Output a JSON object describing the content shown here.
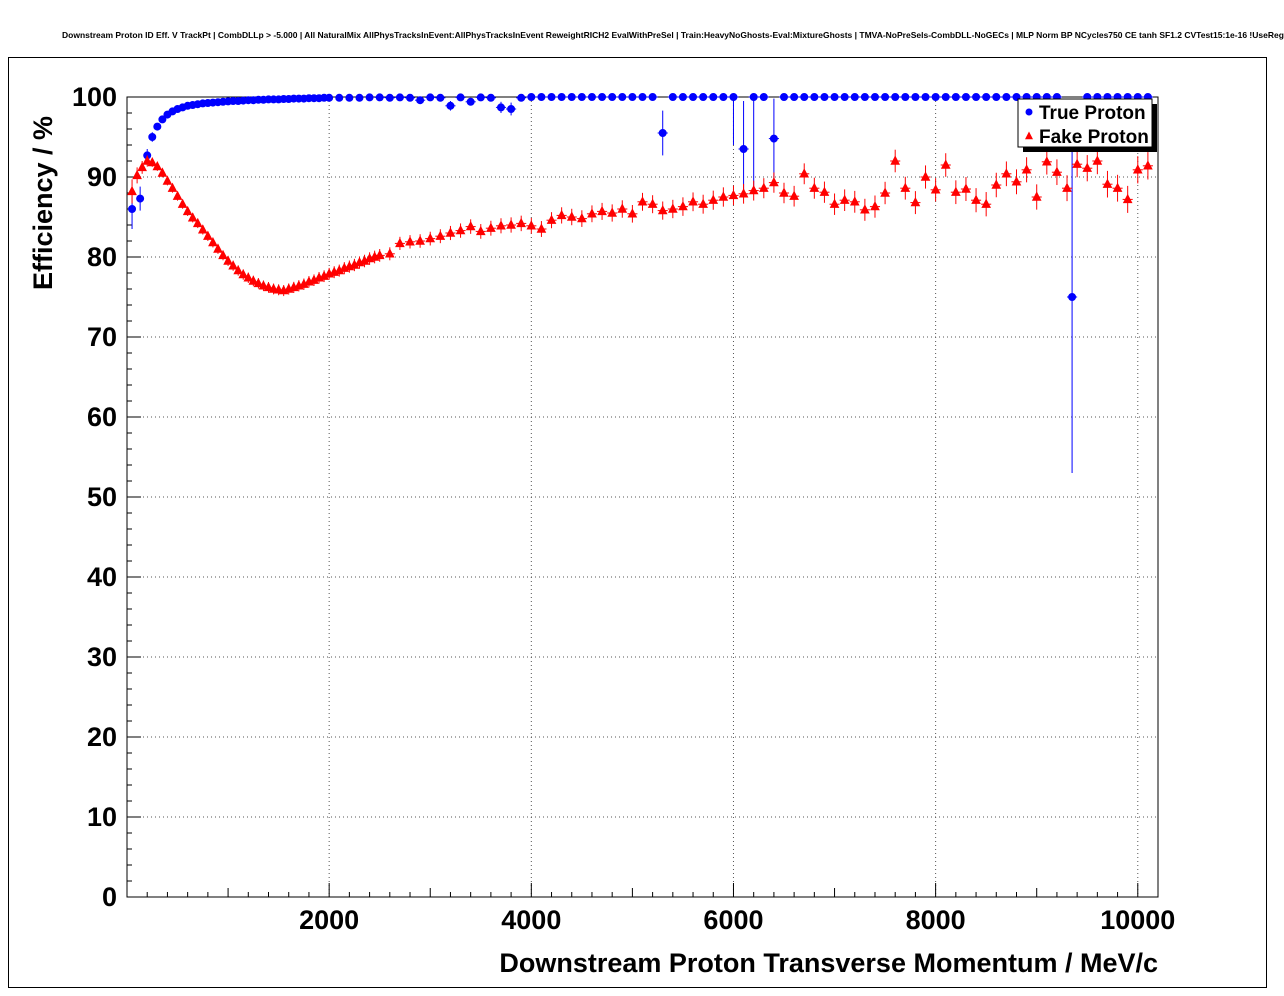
{
  "chart_data": {
    "type": "scatter",
    "title": "Downstream Proton ID Eff. V TrackPt | CombDLLp > -5.000 | All NaturalMix AllPhysTracksInEvent:AllPhysTracksInEvent ReweightRICH2 EvalWithPreSel | Train:HeavyNoGhosts-Eval:MixtureGhosts | TMVA-NoPreSels-CombDLL-NoGECs | MLP Norm BP NCycles750 CE tanh SF1.2 CVTest15:1e-16 !UseReg",
    "xlabel": "Downstream Proton Transverse Momentum / MeV/c",
    "ylabel": "Efficiency / %",
    "xlim": [
      0,
      10200
    ],
    "ylim": [
      0,
      100
    ],
    "x_major_ticks": [
      2000,
      4000,
      6000,
      8000,
      10000
    ],
    "x_tick_labels": [
      "2000",
      "4000",
      "6000",
      "8000",
      "10000"
    ],
    "y_major_ticks": [
      0,
      10,
      20,
      30,
      40,
      50,
      60,
      70,
      80,
      90,
      100
    ],
    "y_tick_labels": [
      "0",
      "10",
      "20",
      "30",
      "40",
      "50",
      "60",
      "70",
      "80",
      "90",
      "100"
    ],
    "x_minor_step": 200,
    "x_medium_step": 1000,
    "y_minor_step": 2,
    "grid": "dotted",
    "grid_color": "#555555",
    "legend": {
      "position": "top-right",
      "entries": [
        {
          "label": "True Proton",
          "color": "#0000ff",
          "marker": "circle"
        },
        {
          "label": "Fake Proton",
          "color": "#ff0000",
          "marker": "triangle"
        }
      ]
    },
    "series": [
      {
        "name": "True Proton",
        "color": "#0000ff",
        "marker": "circle",
        "default_yerr": 0.25,
        "yerr_base": 0.2,
        "yerr_per_1000": 0.0,
        "xerr_halfwidth_small": 25,
        "xerr_halfwidth_large": 50,
        "xerr_threshold": 2500,
        "points": [
          [
            50,
            86,
            2.5
          ],
          [
            130,
            87.3,
            1.5
          ],
          [
            200,
            92.7,
            0.8
          ],
          [
            250,
            95,
            0.6
          ],
          [
            300,
            96.3
          ],
          [
            350,
            97.2
          ],
          [
            400,
            97.8
          ],
          [
            450,
            98.2
          ],
          [
            500,
            98.5
          ],
          [
            550,
            98.7
          ],
          [
            600,
            98.9
          ],
          [
            650,
            99.0
          ],
          [
            700,
            99.1
          ],
          [
            750,
            99.2
          ],
          [
            800,
            99.25
          ],
          [
            850,
            99.3
          ],
          [
            900,
            99.35
          ],
          [
            950,
            99.4
          ],
          [
            1000,
            99.45
          ],
          [
            1050,
            99.5
          ],
          [
            1100,
            99.5
          ],
          [
            1150,
            99.55
          ],
          [
            1200,
            99.6
          ],
          [
            1250,
            99.6
          ],
          [
            1300,
            99.65
          ],
          [
            1350,
            99.65
          ],
          [
            1400,
            99.7
          ],
          [
            1450,
            99.7
          ],
          [
            1500,
            99.7
          ],
          [
            1550,
            99.75
          ],
          [
            1600,
            99.75
          ],
          [
            1650,
            99.8
          ],
          [
            1700,
            99.8
          ],
          [
            1750,
            99.8
          ],
          [
            1800,
            99.85
          ],
          [
            1850,
            99.85
          ],
          [
            1900,
            99.85
          ],
          [
            1950,
            99.9
          ],
          [
            2000,
            99.9
          ],
          [
            2100,
            99.9
          ],
          [
            2200,
            99.9
          ],
          [
            2300,
            99.9
          ],
          [
            2400,
            99.95
          ],
          [
            2500,
            99.95
          ],
          [
            2600,
            99.9
          ],
          [
            2700,
            99.95
          ],
          [
            2800,
            99.9
          ],
          [
            2900,
            99.6
          ],
          [
            3000,
            99.95
          ],
          [
            3100,
            99.9
          ],
          [
            3200,
            98.9,
            0.6
          ],
          [
            3300,
            99.95
          ],
          [
            3400,
            99.4
          ],
          [
            3500,
            99.95
          ],
          [
            3600,
            99.9
          ],
          [
            3700,
            98.7,
            0.7
          ],
          [
            3800,
            98.5,
            0.8
          ],
          [
            3900,
            99.9
          ],
          [
            4000,
            100
          ],
          [
            4100,
            100
          ],
          [
            4200,
            100
          ],
          [
            4300,
            100
          ],
          [
            4400,
            100
          ],
          [
            4500,
            100
          ],
          [
            4600,
            100
          ],
          [
            4700,
            100
          ],
          [
            4800,
            100
          ],
          [
            4900,
            100
          ],
          [
            5000,
            100
          ],
          [
            5100,
            100
          ],
          [
            5200,
            100
          ],
          [
            5300,
            95.5,
            2.8
          ],
          [
            5400,
            100
          ],
          [
            5500,
            100
          ],
          [
            5600,
            100
          ],
          [
            5700,
            100
          ],
          [
            5800,
            100
          ],
          [
            5900,
            100
          ],
          [
            6000,
            100,
            6
          ],
          [
            6100,
            93.5,
            6
          ],
          [
            6200,
            100,
            12
          ],
          [
            6300,
            100
          ],
          [
            6400,
            94.8,
            5
          ],
          [
            6500,
            100
          ],
          [
            6600,
            100
          ],
          [
            6700,
            100
          ],
          [
            6800,
            100
          ],
          [
            6900,
            100
          ],
          [
            7000,
            100
          ],
          [
            7100,
            100
          ],
          [
            7200,
            100
          ],
          [
            7300,
            100
          ],
          [
            7400,
            100
          ],
          [
            7500,
            100
          ],
          [
            7600,
            100
          ],
          [
            7700,
            100
          ],
          [
            7800,
            100
          ],
          [
            7900,
            100
          ],
          [
            8000,
            100
          ],
          [
            8100,
            100
          ],
          [
            8200,
            100
          ],
          [
            8300,
            100
          ],
          [
            8400,
            100
          ],
          [
            8500,
            100
          ],
          [
            8600,
            100
          ],
          [
            8700,
            100
          ],
          [
            8800,
            100
          ],
          [
            8900,
            100
          ],
          [
            9000,
            100
          ],
          [
            9100,
            100
          ],
          [
            9200,
            100
          ],
          [
            9350,
            75,
            22
          ],
          [
            9500,
            100
          ],
          [
            9600,
            100
          ],
          [
            9700,
            100
          ],
          [
            9800,
            100
          ],
          [
            9900,
            100
          ],
          [
            10000,
            100
          ],
          [
            10100,
            100
          ]
        ]
      },
      {
        "name": "Fake Proton",
        "color": "#ff0000",
        "marker": "triangle",
        "default_yerr": null,
        "yerr_base": 0.5,
        "yerr_per_1000": 0.12,
        "xerr_halfwidth_small": 25,
        "xerr_halfwidth_large": 50,
        "xerr_threshold": 2500,
        "points": [
          [
            50,
            88.2,
            1.5
          ],
          [
            100,
            90.2,
            1.0
          ],
          [
            150,
            91.2,
            0.8
          ],
          [
            200,
            92.0,
            0.7
          ],
          [
            250,
            91.8
          ],
          [
            300,
            91.3
          ],
          [
            350,
            90.5
          ],
          [
            400,
            89.5
          ],
          [
            450,
            88.6
          ],
          [
            500,
            87.6
          ],
          [
            550,
            86.6
          ],
          [
            600,
            85.7
          ],
          [
            650,
            84.9
          ],
          [
            700,
            84.2
          ],
          [
            750,
            83.4
          ],
          [
            800,
            82.6
          ],
          [
            850,
            81.8
          ],
          [
            900,
            81.0
          ],
          [
            950,
            80.2
          ],
          [
            1000,
            79.5
          ],
          [
            1050,
            78.9
          ],
          [
            1100,
            78.3
          ],
          [
            1150,
            77.8
          ],
          [
            1200,
            77.4
          ],
          [
            1250,
            77.0
          ],
          [
            1300,
            76.7
          ],
          [
            1350,
            76.4
          ],
          [
            1400,
            76.2
          ],
          [
            1450,
            76.0
          ],
          [
            1500,
            75.9
          ],
          [
            1550,
            75.8
          ],
          [
            1600,
            76.0
          ],
          [
            1650,
            76.2
          ],
          [
            1700,
            76.4
          ],
          [
            1750,
            76.6
          ],
          [
            1800,
            76.9
          ],
          [
            1850,
            77.1
          ],
          [
            1900,
            77.4
          ],
          [
            1950,
            77.6
          ],
          [
            2000,
            77.9
          ],
          [
            2050,
            78.1
          ],
          [
            2100,
            78.3
          ],
          [
            2150,
            78.6
          ],
          [
            2200,
            78.8
          ],
          [
            2250,
            79.0
          ],
          [
            2300,
            79.3
          ],
          [
            2350,
            79.5
          ],
          [
            2400,
            79.8
          ],
          [
            2450,
            80.0
          ],
          [
            2500,
            80.2
          ],
          [
            2600,
            80.4
          ],
          [
            2700,
            81.7
          ],
          [
            2800,
            81.9
          ],
          [
            2900,
            82.0
          ],
          [
            3000,
            82.3
          ],
          [
            3100,
            82.6
          ],
          [
            3200,
            83.0
          ],
          [
            3300,
            83.3
          ],
          [
            3400,
            83.8
          ],
          [
            3500,
            83.2
          ],
          [
            3600,
            83.6
          ],
          [
            3700,
            83.9
          ],
          [
            3800,
            84.0
          ],
          [
            3900,
            84.2
          ],
          [
            4000,
            83.9
          ],
          [
            4100,
            83.5
          ],
          [
            4200,
            84.6
          ],
          [
            4300,
            85.2
          ],
          [
            4400,
            85.0
          ],
          [
            4500,
            84.8
          ],
          [
            4600,
            85.4
          ],
          [
            4700,
            85.7
          ],
          [
            4800,
            85.5
          ],
          [
            4900,
            86.0
          ],
          [
            5000,
            85.4
          ],
          [
            5100,
            86.9
          ],
          [
            5200,
            86.6
          ],
          [
            5300,
            85.8
          ],
          [
            5400,
            86.0
          ],
          [
            5500,
            86.3
          ],
          [
            5600,
            86.9
          ],
          [
            5700,
            86.6
          ],
          [
            5800,
            87.1
          ],
          [
            5900,
            87.5
          ],
          [
            6000,
            87.7
          ],
          [
            6100,
            87.9
          ],
          [
            6200,
            88.3
          ],
          [
            6300,
            88.6
          ],
          [
            6400,
            89.3
          ],
          [
            6500,
            88.0
          ],
          [
            6600,
            87.6
          ],
          [
            6700,
            90.4
          ],
          [
            6800,
            88.6
          ],
          [
            6900,
            88.1
          ],
          [
            7000,
            86.6
          ],
          [
            7100,
            87.1
          ],
          [
            7200,
            86.9
          ],
          [
            7300,
            85.9
          ],
          [
            7400,
            86.3
          ],
          [
            7500,
            88.0
          ],
          [
            7600,
            92.0
          ],
          [
            7700,
            88.6
          ],
          [
            7800,
            86.8
          ],
          [
            7900,
            90.0
          ],
          [
            8000,
            88.4
          ],
          [
            8100,
            91.5
          ],
          [
            8200,
            88.1
          ],
          [
            8300,
            88.5
          ],
          [
            8400,
            87.1
          ],
          [
            8500,
            86.6
          ],
          [
            8600,
            89.0
          ],
          [
            8700,
            90.4
          ],
          [
            8800,
            89.4
          ],
          [
            8900,
            90.9
          ],
          [
            9000,
            87.5
          ],
          [
            9100,
            91.9
          ],
          [
            9200,
            90.6
          ],
          [
            9300,
            88.6
          ],
          [
            9400,
            91.6
          ],
          [
            9500,
            91.1
          ],
          [
            9600,
            92.0
          ],
          [
            9700,
            89.1
          ],
          [
            9800,
            88.6
          ],
          [
            9900,
            87.2
          ],
          [
            10000,
            90.9
          ],
          [
            10100,
            91.4
          ]
        ]
      }
    ]
  }
}
